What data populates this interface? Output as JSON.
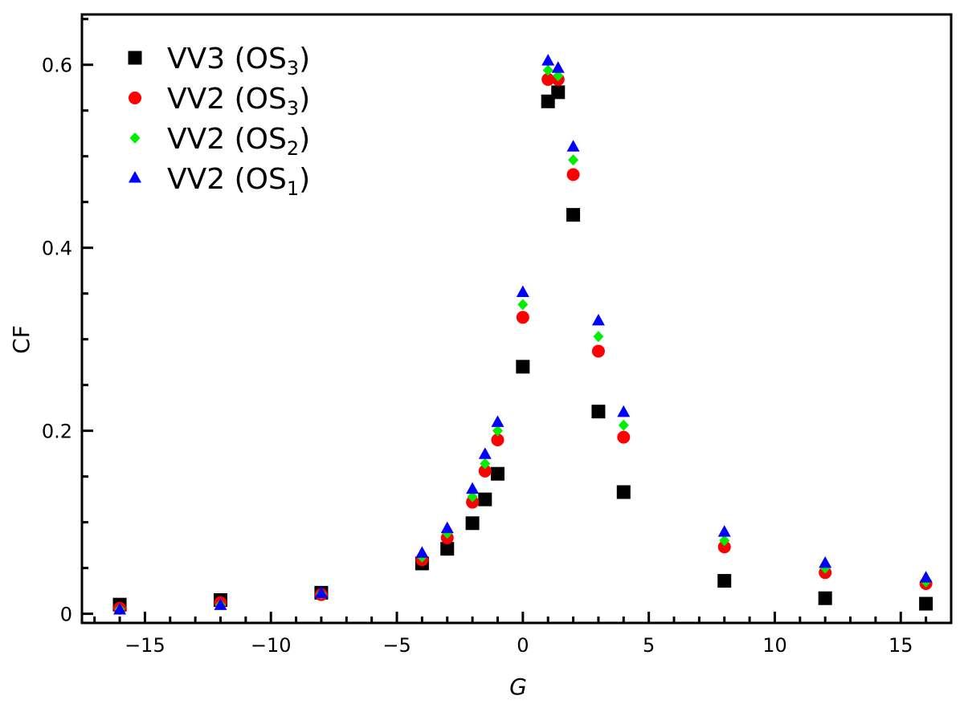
{
  "chart_data": {
    "type": "scatter",
    "title": "",
    "xlabel": "G",
    "ylabel": "CF",
    "xlim": [
      -17.5,
      17.0
    ],
    "ylim": [
      -0.01,
      0.655
    ],
    "xticks": [
      -15,
      -10,
      -5,
      0,
      5,
      10,
      15
    ],
    "xtick_labels": [
      "−15",
      "−10",
      "−5",
      "0",
      "5",
      "10",
      "15"
    ],
    "yticks": [
      0,
      0.2,
      0.4,
      0.6
    ],
    "ytick_labels": [
      "0",
      "0.2",
      "0.4",
      "0.6"
    ],
    "grid": false,
    "legend_position": "top-left",
    "x": [
      -16,
      -12,
      -8,
      -4,
      -3,
      -2,
      -1.5,
      -1,
      0,
      1,
      1.4,
      2,
      3,
      4,
      8,
      12,
      16
    ],
    "series": [
      {
        "name": "VV3 (OS",
        "subscript": "3",
        "suffix": ")",
        "marker": "square",
        "color": "#000000",
        "values": [
          0.01,
          0.015,
          0.023,
          0.055,
          0.071,
          0.099,
          0.125,
          0.153,
          0.27,
          0.56,
          0.57,
          0.436,
          0.221,
          0.133,
          0.036,
          0.017,
          0.011
        ]
      },
      {
        "name": "VV2 (OS",
        "subscript": "3",
        "suffix": ")",
        "marker": "circle",
        "color": "#ff0000",
        "values": [
          0.006,
          0.012,
          0.021,
          0.059,
          0.083,
          0.122,
          0.156,
          0.19,
          0.324,
          0.584,
          0.584,
          0.48,
          0.287,
          0.193,
          0.073,
          0.045,
          0.033
        ]
      },
      {
        "name": "VV2 (OS",
        "subscript": "2",
        "suffix": ")",
        "marker": "diamond",
        "color": "#00ee00",
        "values": [
          0.005,
          0.01,
          0.022,
          0.062,
          0.088,
          0.128,
          0.164,
          0.2,
          0.338,
          0.594,
          0.588,
          0.496,
          0.303,
          0.206,
          0.08,
          0.05,
          0.035
        ]
      },
      {
        "name": "VV2 (OS",
        "subscript": "1",
        "suffix": ")",
        "marker": "triangle",
        "color": "#0000ff",
        "values": [
          0.004,
          0.009,
          0.022,
          0.066,
          0.093,
          0.136,
          0.174,
          0.209,
          0.351,
          0.604,
          0.596,
          0.51,
          0.32,
          0.22,
          0.089,
          0.055,
          0.039
        ]
      }
    ]
  }
}
